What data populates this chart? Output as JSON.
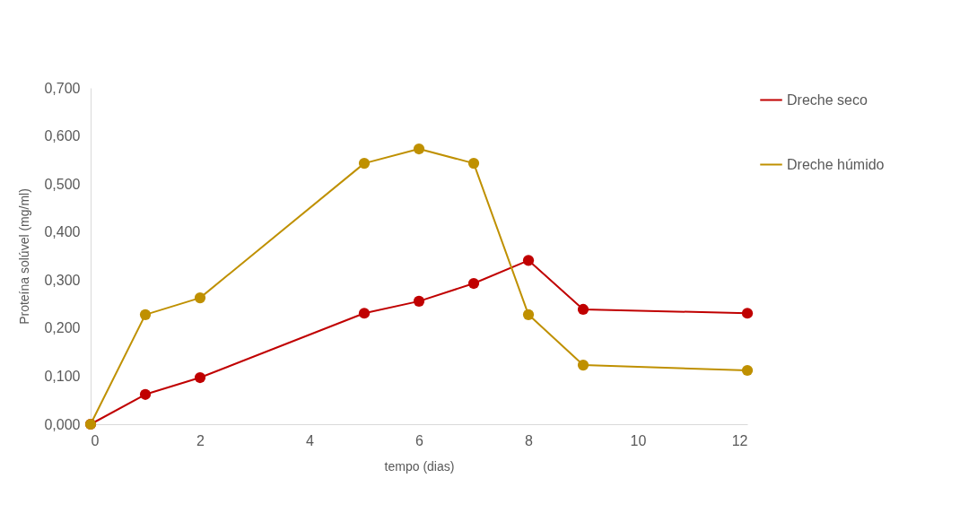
{
  "chart_data": {
    "type": "line",
    "xlabel": "tempo (dias)",
    "ylabel": "Proteína solúvel (mg/ml)",
    "x": [
      0,
      1,
      2,
      5,
      6,
      7,
      8,
      9,
      12
    ],
    "series": [
      {
        "name": "Dreche seco",
        "color": "#c00000",
        "values": [
          0,
          0.062,
          0.097,
          0.231,
          0.256,
          0.293,
          0.341,
          0.239,
          0.231
        ]
      },
      {
        "name": "Dreche húmido",
        "color": "#bf9000",
        "values": [
          0,
          0.228,
          0.263,
          0.543,
          0.573,
          0.543,
          0.228,
          0.123,
          0.112
        ]
      }
    ],
    "xlim": [
      0,
      12
    ],
    "xticks": [
      0,
      2,
      4,
      6,
      8,
      10,
      12
    ],
    "ylim": [
      0,
      0.7
    ],
    "yticks": [
      {
        "value": 0,
        "label": "0,000"
      },
      {
        "value": 0.1,
        "label": "0,100"
      },
      {
        "value": 0.2,
        "label": "0,200"
      },
      {
        "value": 0.3,
        "label": "0,300"
      },
      {
        "value": 0.4,
        "label": "0,400"
      },
      {
        "value": 0.5,
        "label": "0,500"
      },
      {
        "value": 0.6,
        "label": "0,600"
      },
      {
        "value": 0.7,
        "label": "0,700"
      }
    ],
    "grid": false,
    "legend": "right",
    "marker": "circle",
    "line_style": "solid"
  }
}
